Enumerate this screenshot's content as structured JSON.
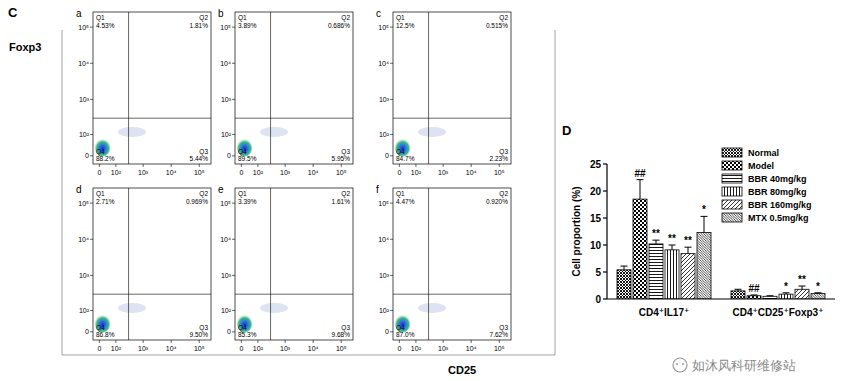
{
  "figure": {
    "panel": "C",
    "xlabel": "CD25",
    "ylabel": "Foxp3",
    "watermark": "如沐风科研维修站"
  },
  "chart_data": [
    {
      "type": "quadrant",
      "title": "a",
      "quadrants": [
        "Q1",
        "Q2",
        "Q3",
        "Q4"
      ],
      "values": [
        4.53,
        1.81,
        5.44,
        88.2
      ],
      "value_labels": [
        "4.53%",
        "1.81%",
        "5.44%",
        "88.2%"
      ],
      "xlim": [
        -30,
        262144
      ],
      "ylim": [
        -30,
        262144
      ],
      "x_gate": 300,
      "y_gate": 300,
      "xticks": [
        0,
        {
          "value": 100,
          "label": "10²"
        },
        {
          "value": 1000,
          "label": "10³"
        },
        {
          "value": 10000,
          "label": "10⁴"
        },
        {
          "value": 100000,
          "label": "10⁵"
        }
      ],
      "yticks": [
        0,
        {
          "value": 100,
          "label": "10²"
        },
        {
          "value": 1000,
          "label": "10³"
        },
        {
          "value": 10000,
          "label": "10⁴"
        },
        {
          "value": 100000,
          "label": "10⁵"
        }
      ]
    },
    {
      "type": "quadrant",
      "title": "b",
      "quadrants": [
        "Q1",
        "Q2",
        "Q3",
        "Q4"
      ],
      "values": [
        3.89,
        0.686,
        5.95,
        89.5
      ],
      "value_labels": [
        "3.89%",
        "0.686%",
        "5.95%",
        "89.5%"
      ],
      "xlim": [
        -30,
        262144
      ],
      "ylim": [
        -30,
        262144
      ],
      "x_gate": 300,
      "y_gate": 300,
      "xticks": [
        0,
        {
          "value": 100,
          "label": "10²"
        },
        {
          "value": 1000,
          "label": "10³"
        },
        {
          "value": 10000,
          "label": "10⁴"
        },
        {
          "value": 100000,
          "label": "10⁵"
        }
      ],
      "yticks": [
        0,
        {
          "value": 100,
          "label": "10²"
        },
        {
          "value": 1000,
          "label": "10³"
        },
        {
          "value": 10000,
          "label": "10⁴"
        },
        {
          "value": 100000,
          "label": "10⁵"
        }
      ]
    },
    {
      "type": "quadrant",
      "title": "c",
      "quadrants": [
        "Q1",
        "Q2",
        "Q3",
        "Q4"
      ],
      "values": [
        12.5,
        0.515,
        2.23,
        84.7
      ],
      "value_labels": [
        "12.5%",
        "0.515%",
        "2.23%",
        "84.7%"
      ],
      "xlim": [
        -30,
        262144
      ],
      "ylim": [
        -30,
        262144
      ],
      "x_gate": 300,
      "y_gate": 300,
      "xticks": [
        0,
        {
          "value": 100,
          "label": "10²"
        },
        {
          "value": 1000,
          "label": "10³"
        },
        {
          "value": 10000,
          "label": "10⁴"
        },
        {
          "value": 100000,
          "label": "10⁵"
        }
      ],
      "yticks": [
        0,
        {
          "value": 100,
          "label": "10²"
        },
        {
          "value": 1000,
          "label": "10³"
        },
        {
          "value": 10000,
          "label": "10⁴"
        },
        {
          "value": 100000,
          "label": "10⁵"
        }
      ]
    },
    {
      "type": "quadrant",
      "title": "d",
      "quadrants": [
        "Q1",
        "Q2",
        "Q3",
        "Q4"
      ],
      "values": [
        2.71,
        0.969,
        9.5,
        86.8
      ],
      "value_labels": [
        "2.71%",
        "0.969%",
        "9.50%",
        "86.8%"
      ],
      "xlim": [
        -30,
        262144
      ],
      "ylim": [
        -30,
        262144
      ],
      "x_gate": 300,
      "y_gate": 300,
      "xticks": [
        0,
        {
          "value": 100,
          "label": "10²"
        },
        {
          "value": 1000,
          "label": "10³"
        },
        {
          "value": 10000,
          "label": "10⁴"
        },
        {
          "value": 100000,
          "label": "10⁵"
        }
      ],
      "yticks": [
        0,
        {
          "value": 100,
          "label": "10²"
        },
        {
          "value": 1000,
          "label": "10³"
        },
        {
          "value": 10000,
          "label": "10⁴"
        },
        {
          "value": 100000,
          "label": "10⁵"
        }
      ]
    },
    {
      "type": "quadrant",
      "title": "e",
      "quadrants": [
        "Q1",
        "Q2",
        "Q3",
        "Q4"
      ],
      "values": [
        3.39,
        1.61,
        9.68,
        85.3
      ],
      "value_labels": [
        "3.39%",
        "1.61%",
        "9.68%",
        "85.3%"
      ],
      "xlim": [
        -30,
        262144
      ],
      "ylim": [
        -30,
        262144
      ],
      "x_gate": 300,
      "y_gate": 300,
      "xticks": [
        0,
        {
          "value": 100,
          "label": "10²"
        },
        {
          "value": 1000,
          "label": "10³"
        },
        {
          "value": 10000,
          "label": "10⁴"
        },
        {
          "value": 100000,
          "label": "10⁵"
        }
      ],
      "yticks": [
        0,
        {
          "value": 100,
          "label": "10²"
        },
        {
          "value": 1000,
          "label": "10³"
        },
        {
          "value": 10000,
          "label": "10⁴"
        },
        {
          "value": 100000,
          "label": "10⁵"
        }
      ]
    },
    {
      "type": "quadrant",
      "title": "f",
      "quadrants": [
        "Q1",
        "Q2",
        "Q3",
        "Q4"
      ],
      "values": [
        4.47,
        0.92,
        7.62,
        87.0
      ],
      "value_labels": [
        "4.47%",
        "0.920%",
        "7.62%",
        "87.0%"
      ],
      "xlim": [
        -30,
        262144
      ],
      "ylim": [
        -30,
        262144
      ],
      "x_gate": 300,
      "y_gate": 300,
      "xticks": [
        0,
        {
          "value": 100,
          "label": "10²"
        },
        {
          "value": 1000,
          "label": "10³"
        },
        {
          "value": 10000,
          "label": "10⁴"
        },
        {
          "value": 100000,
          "label": "10⁵"
        }
      ],
      "yticks": [
        0,
        {
          "value": 100,
          "label": "10²"
        },
        {
          "value": 1000,
          "label": "10³"
        },
        {
          "value": 10000,
          "label": "10⁴"
        },
        {
          "value": 100000,
          "label": "10⁵"
        }
      ]
    },
    {
      "type": "bar",
      "title": "D",
      "ylabel": "Cell proportion (%)",
      "categories": [
        "CD4⁺IL17⁺",
        "CD4⁺CD25⁺Foxp3⁺"
      ],
      "series": [
        {
          "name": "Normal",
          "color": "#000000",
          "values": [
            5.4,
            1.5
          ],
          "errors": [
            0.7,
            0.3
          ],
          "annotations": [
            null,
            null
          ]
        },
        {
          "name": "Model",
          "color": "#000000",
          "values": [
            18.5,
            0.6
          ],
          "errors": [
            3.6,
            0.15
          ],
          "annotations": [
            "##",
            "##"
          ]
        },
        {
          "name": "BBR 40mg/kg",
          "color": "#000000",
          "values": [
            10.2,
            0.5
          ],
          "errors": [
            0.7,
            0.1
          ],
          "annotations": [
            "**",
            null
          ]
        },
        {
          "name": "BBR 80mg/kg",
          "color": "#000000",
          "values": [
            9.1,
            0.9
          ],
          "errors": [
            0.9,
            0.25
          ],
          "annotations": [
            "**",
            "*"
          ]
        },
        {
          "name": "BBR 160mg/kg",
          "color": "#000000",
          "values": [
            8.4,
            1.8
          ],
          "errors": [
            1.2,
            0.6
          ],
          "annotations": [
            "**",
            "**"
          ]
        },
        {
          "name": "MTX 0.5mg/kg",
          "color": "#000000",
          "values": [
            12.3,
            1.0
          ],
          "errors": [
            3.0,
            0.15
          ],
          "annotations": [
            "*",
            "*"
          ]
        }
      ],
      "ylim": [
        0,
        25
      ],
      "yticks": [
        0,
        5,
        10,
        15,
        20,
        25
      ],
      "grid": false,
      "legend": "top-right"
    }
  ]
}
